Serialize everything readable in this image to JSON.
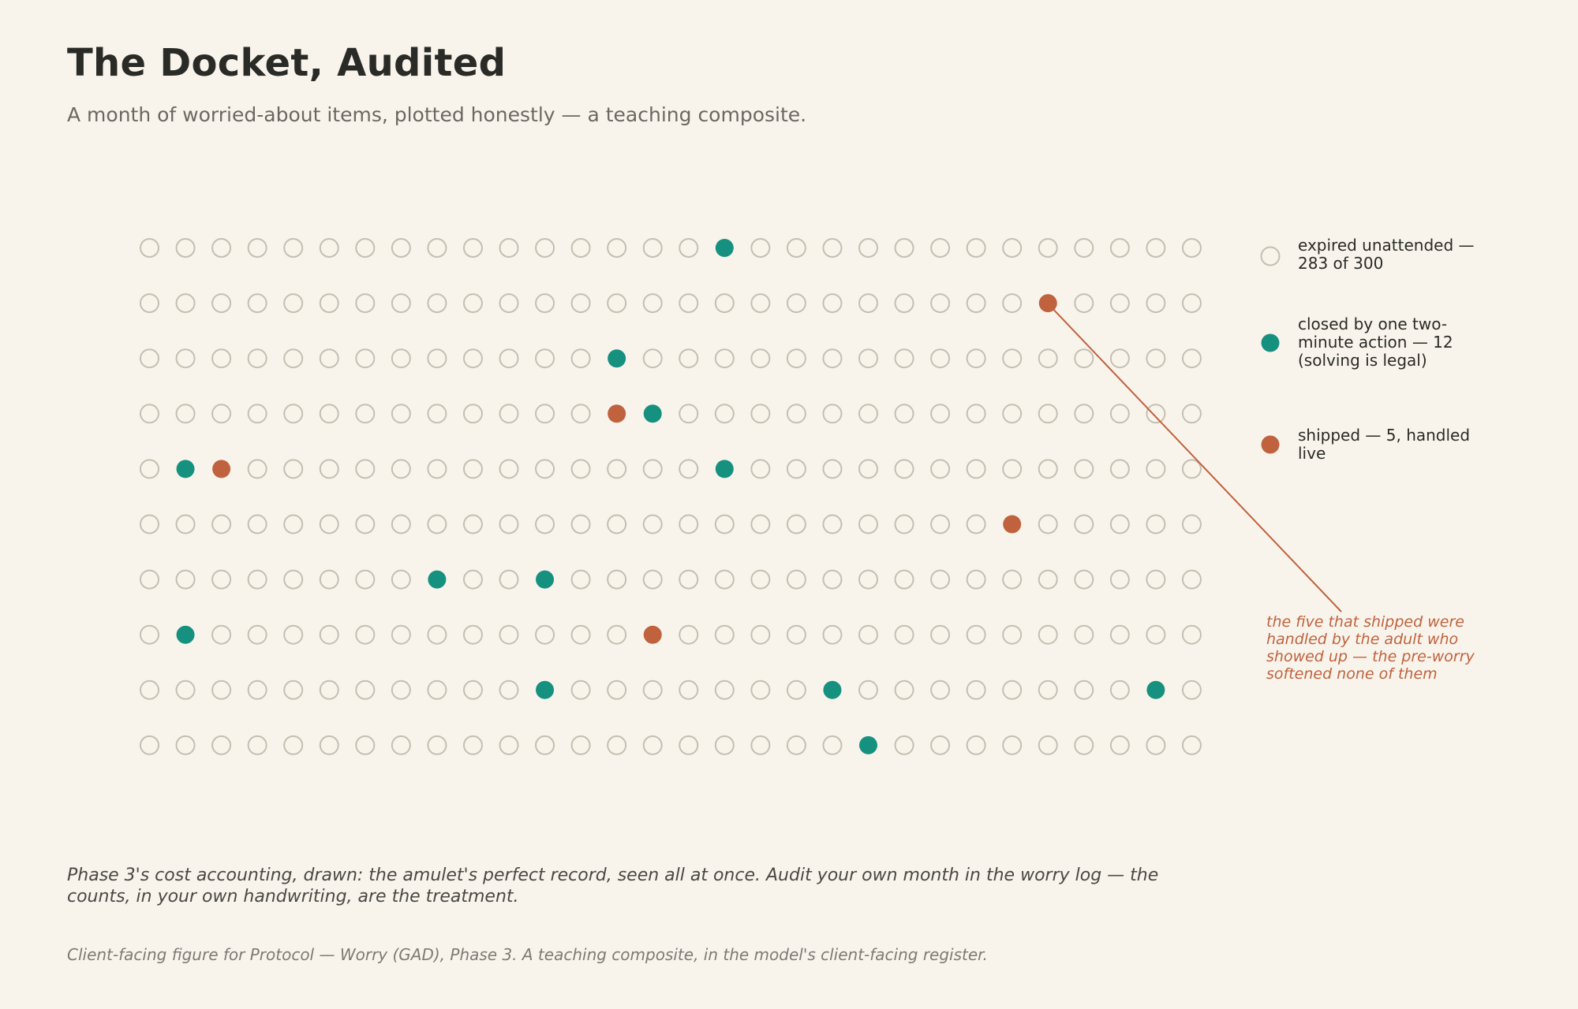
{
  "title": "The Docket, Audited",
  "subtitle": "A month of worried-about items, plotted honestly — a teaching composite.",
  "legend": {
    "expired": "expired unattended — 283 of 300",
    "closed": "closed by one two-minute action — 12 (solving is legal)",
    "shipped": "shipped — 5, handled live"
  },
  "annotation": "the five that shipped were handled by the adult who showed up — the pre-worry softened none of them",
  "footnote": "Phase 3's cost accounting, drawn: the amulet's perfect record, seen all at once. Audit your own month in the worry log — the counts, in your own handwriting, are the treatment.",
  "source": "Client-facing figure for Protocol — Worry (GAD), Phase 3. A teaching composite, in the model's client-facing register.",
  "colors": {
    "background": "#f8f4ec",
    "expired": "#c4bfb1",
    "closed": "#16917f",
    "shipped": "#c0623d"
  },
  "chart_data": {
    "type": "scatter",
    "grid": {
      "columns": 30,
      "rows": 10,
      "total": 300
    },
    "counts": {
      "expired": 283,
      "closed": 12,
      "shipped": 5
    },
    "closed_cells": [
      [
        16,
        0
      ],
      [
        13,
        2
      ],
      [
        14,
        3
      ],
      [
        1,
        4
      ],
      [
        16,
        4
      ],
      [
        8,
        6
      ],
      [
        11,
        6
      ],
      [
        1,
        7
      ],
      [
        11,
        8
      ],
      [
        19,
        8
      ],
      [
        28,
        8
      ],
      [
        20,
        9
      ]
    ],
    "shipped_cells": [
      [
        25,
        1
      ],
      [
        13,
        3
      ],
      [
        2,
        4
      ],
      [
        24,
        5
      ],
      [
        14,
        7
      ]
    ],
    "annotated_cell": [
      25,
      1
    ]
  }
}
